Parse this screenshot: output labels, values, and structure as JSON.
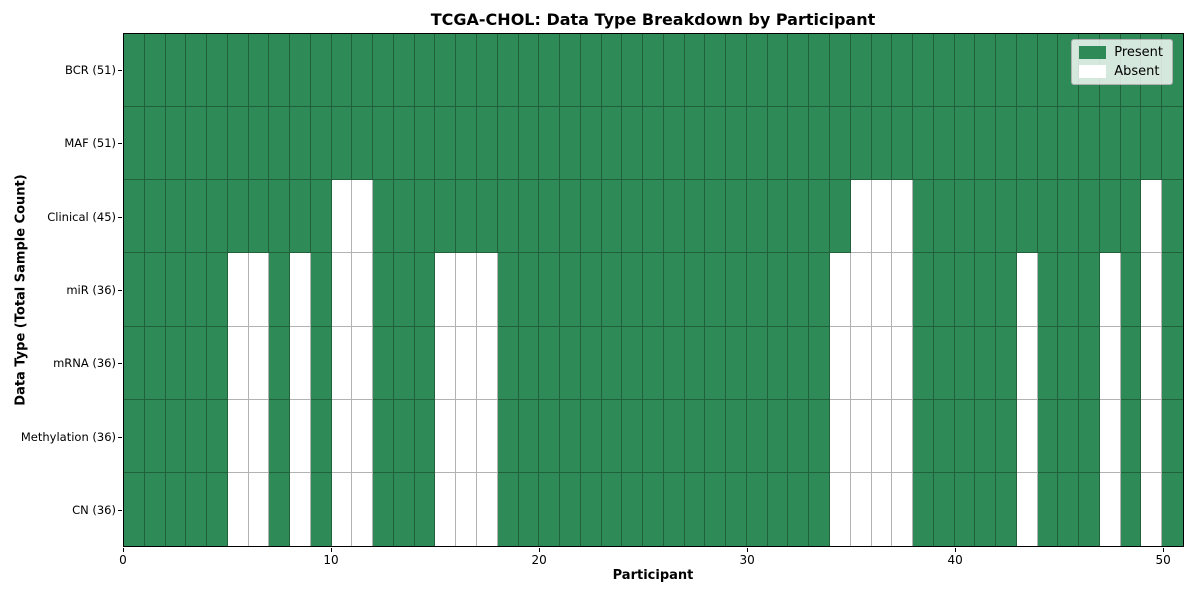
{
  "chart_data": {
    "type": "heatmap",
    "title": "TCGA-CHOL: Data Type Breakdown by Participant",
    "xlabel": "Participant",
    "ylabel": "Data Type (Total Sample Count)",
    "x_ticks": [
      0,
      10,
      20,
      30,
      40,
      50
    ],
    "x_range": [
      0,
      51
    ],
    "n_participants": 51,
    "grid_on": true,
    "legend_position": "upper right",
    "colors": {
      "present": "#2E8B57",
      "absent": "#FFFFFF"
    },
    "legend": [
      {
        "label": "Present",
        "key": "present"
      },
      {
        "label": "Absent",
        "key": "absent"
      }
    ],
    "rows": [
      {
        "label": "BCR (51)",
        "total": 51,
        "absent_participants": []
      },
      {
        "label": "MAF (51)",
        "total": 51,
        "absent_participants": []
      },
      {
        "label": "Clinical (45)",
        "total": 45,
        "absent_participants": [
          10,
          11,
          35,
          36,
          37,
          49
        ]
      },
      {
        "label": "miR (36)",
        "total": 36,
        "absent_participants": [
          5,
          6,
          8,
          10,
          11,
          15,
          16,
          17,
          34,
          35,
          36,
          37,
          43,
          47,
          49
        ]
      },
      {
        "label": "mRNA (36)",
        "total": 36,
        "absent_participants": [
          5,
          6,
          8,
          10,
          11,
          15,
          16,
          17,
          34,
          35,
          36,
          37,
          43,
          47,
          49
        ]
      },
      {
        "label": "Methylation (36)",
        "total": 36,
        "absent_participants": [
          5,
          6,
          8,
          10,
          11,
          15,
          16,
          17,
          34,
          35,
          36,
          37,
          43,
          47,
          49
        ]
      },
      {
        "label": "CN (36)",
        "total": 36,
        "absent_participants": [
          5,
          6,
          8,
          10,
          11,
          15,
          16,
          17,
          34,
          35,
          36,
          37,
          43,
          47,
          49
        ]
      }
    ]
  }
}
